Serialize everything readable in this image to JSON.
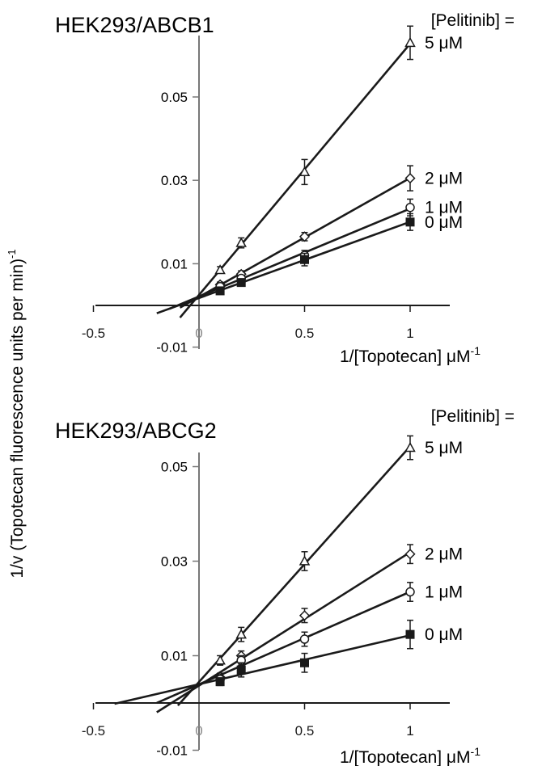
{
  "figure": {
    "ylabel": "1/v (Topotecan fluorescence units per min)",
    "ylabel_sup": "-1"
  },
  "chart_data": [
    {
      "type": "line",
      "title": "HEK293/ABCB1",
      "legend_title": "[Pelitinib] =",
      "xlabel": "1/[Topotecan] μM",
      "xlabel_sup": "-1",
      "xlim": [
        -0.6,
        1.1
      ],
      "ylim": [
        -0.012,
        0.068
      ],
      "x_ticks": [
        {
          "value": -0.5,
          "label": "-0.5"
        },
        {
          "value": 0,
          "label": "0"
        },
        {
          "value": 0.5,
          "label": "0.5"
        },
        {
          "value": 1,
          "label": "1"
        }
      ],
      "y_ticks": [
        {
          "value": -0.01,
          "label": "-0.01"
        },
        {
          "value": 0.01,
          "label": "0.01"
        },
        {
          "value": 0.03,
          "label": "0.03"
        },
        {
          "value": 0.05,
          "label": "0.05"
        }
      ],
      "x": [
        0.1,
        0.2,
        0.5,
        1.0
      ],
      "series": [
        {
          "name": "5 μM",
          "marker": "triangle",
          "values": [
            0.0085,
            0.015,
            0.032,
            0.063
          ],
          "errors": [
            0.0008,
            0.0012,
            0.003,
            0.004
          ],
          "fit": [
            -0.09,
            1.0
          ]
        },
        {
          "name": "2 μM",
          "marker": "diamond",
          "values": [
            0.005,
            0.0075,
            0.0165,
            0.0305
          ],
          "errors": [
            0.0006,
            0.0008,
            0.001,
            0.003
          ],
          "fit": [
            -0.09,
            1.0
          ]
        },
        {
          "name": "1 μM",
          "marker": "circle",
          "values": [
            0.0045,
            0.0065,
            0.012,
            0.0235
          ],
          "errors": [
            0.0005,
            0.0006,
            0.0012,
            0.002
          ],
          "fit": [
            -0.14,
            1.0
          ]
        },
        {
          "name": "0 μM",
          "marker": "square",
          "values": [
            0.0035,
            0.0055,
            0.011,
            0.02
          ],
          "errors": [
            0.0005,
            0.0006,
            0.0015,
            0.002
          ],
          "fit": [
            -0.2,
            1.0
          ]
        }
      ]
    },
    {
      "type": "line",
      "title": "HEK293/ABCG2",
      "legend_title": "[Pelitinib] =",
      "xlabel": "1/[Topotecan] μM",
      "xlabel_sup": "-1",
      "xlim": [
        -0.6,
        1.1
      ],
      "ylim": [
        -0.012,
        0.058
      ],
      "x_ticks": [
        {
          "value": -0.5,
          "label": "-0.5"
        },
        {
          "value": 0,
          "label": "0"
        },
        {
          "value": 0.5,
          "label": "0.5"
        },
        {
          "value": 1,
          "label": "1"
        }
      ],
      "y_ticks": [
        {
          "value": -0.01,
          "label": "-0.01"
        },
        {
          "value": 0.01,
          "label": "0.01"
        },
        {
          "value": 0.03,
          "label": "0.03"
        },
        {
          "value": 0.05,
          "label": "0.05"
        }
      ],
      "x": [
        0.1,
        0.2,
        0.5,
        1.0
      ],
      "series": [
        {
          "name": "5 μM",
          "marker": "triangle",
          "values": [
            0.009,
            0.0145,
            0.03,
            0.054
          ],
          "errors": [
            0.001,
            0.0015,
            0.002,
            0.0025
          ],
          "fit": [
            -0.1,
            1.0
          ]
        },
        {
          "name": "2 μM",
          "marker": "diamond",
          "values": [
            0.0055,
            0.01,
            0.0185,
            0.0315
          ],
          "errors": [
            0.0008,
            0.001,
            0.0015,
            0.002
          ],
          "fit": [
            -0.2,
            1.0
          ]
        },
        {
          "name": "1 μM",
          "marker": "circle",
          "values": [
            0.005,
            0.009,
            0.0135,
            0.0235
          ],
          "errors": [
            0.0008,
            0.001,
            0.0015,
            0.002
          ],
          "fit": [
            -0.2,
            1.0
          ]
        },
        {
          "name": "0 μM",
          "marker": "square",
          "values": [
            0.0045,
            0.007,
            0.0085,
            0.0145
          ],
          "errors": [
            0.0008,
            0.0015,
            0.002,
            0.003
          ],
          "fit": [
            -0.4,
            1.0
          ]
        }
      ]
    }
  ]
}
